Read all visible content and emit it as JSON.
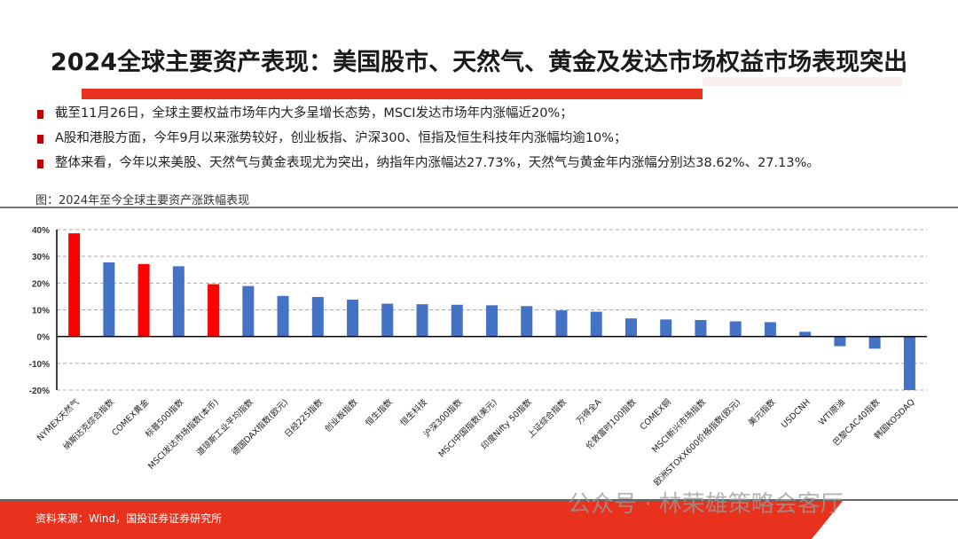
{
  "header": {
    "title": "2024全球主要资产表现：美国股市、天然气、黄金及发达市场权益市场表现突出"
  },
  "bullets": [
    "截至11月26日，全球主要权益市场年内大多呈增长态势，MSCI发达市场年内涨幅近20%；",
    "A股和港股方面，今年9月以来涨势较好，创业板指、沪深300、恒指及恒生科技年内涨幅均逾10%；",
    "整体来看，今年以来美股、天然气与黄金表现尤为突出，纳指年内涨幅达27.73%，天然气与黄金年内涨幅分别达38.62%、27.13%。"
  ],
  "caption": "图：2024年至今全球主要资产涨跌幅表现",
  "footer": {
    "source": "资料来源：Wind，国投证券证券研究所",
    "watermark": "公众号 · 林荣雄策略会客厅"
  },
  "colors": {
    "accent": "#e8321e",
    "highlight_bar": "#ff0000",
    "bar": "#4472c4"
  },
  "chart_data": {
    "type": "bar",
    "categories": [
      "NYMEX天然气",
      "纳斯达克综合指数",
      "COMEX黄金",
      "标普500指数",
      "MSCI发达市场指数(本币)",
      "道琼斯工业平均指数",
      "德国DAX指数(欧元)",
      "日经225指数",
      "创业板指数",
      "恒生指数",
      "恒生科技",
      "沪深300指数",
      "MSCI中国指数(美元)",
      "印度Nifty 50指数",
      "上证综合指数",
      "万得全A",
      "伦敦富时100指数",
      "COMEX铜",
      "MSCI新兴市场指数",
      "欧洲STOXX600价格指数(欧元)",
      "美元指数",
      "USDCNH",
      "WTI原油",
      "巴黎CAC40指数",
      "韩国KOSDAQ"
    ],
    "values": [
      38.62,
      27.73,
      27.13,
      26.3,
      19.6,
      18.9,
      15.2,
      14.8,
      13.8,
      12.3,
      12.1,
      11.9,
      11.7,
      11.4,
      9.8,
      9.3,
      6.8,
      6.4,
      6.2,
      5.7,
      5.4,
      1.8,
      -3.6,
      -4.5,
      -20.0
    ],
    "highlighted": [
      "NYMEX天然气",
      "COMEX黄金",
      "MSCI发达市场指数(本币)"
    ],
    "yticks": [
      "40%",
      "30%",
      "20%",
      "10%",
      "0%",
      "-10%",
      "-20%"
    ],
    "ylim": [
      -20,
      40
    ],
    "grid": true,
    "unit": "%"
  }
}
